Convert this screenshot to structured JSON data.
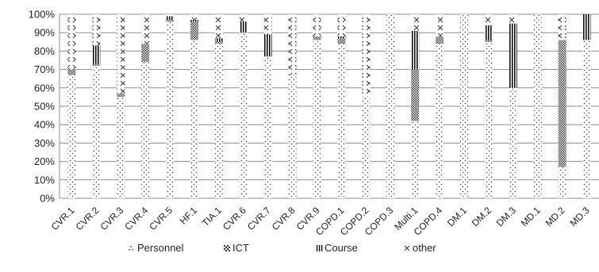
{
  "chart_data": {
    "type": "bar",
    "stacked": true,
    "percent": true,
    "categories": [
      "CVR.1",
      "CVR.2",
      "CVR.3",
      "CVR.4",
      "CVR.5",
      "HF.1",
      "TIA.1",
      "CVR.6",
      "CVR.7",
      "CVR.8",
      "CVR.9",
      "COPD.1",
      "COPD.2",
      "COPD.3",
      "Multi.1",
      "COPD.4",
      "DM.1",
      "DM.2",
      "DM.3",
      "MD.1",
      "MD.2",
      "MD.3"
    ],
    "series": [
      {
        "name": "Personnel",
        "pattern": "dots",
        "values": [
          67,
          72,
          55,
          74,
          96,
          86,
          84,
          90,
          77,
          67,
          86,
          84,
          55,
          100,
          42,
          84,
          100,
          85,
          60,
          100,
          17,
          86
        ]
      },
      {
        "name": "ICT",
        "pattern": "checker",
        "values": [
          3,
          1,
          2,
          10,
          1,
          10,
          1,
          0,
          0,
          0,
          2,
          3,
          0,
          0,
          28,
          4,
          0,
          1,
          0,
          0,
          69,
          0
        ]
      },
      {
        "name": "Course",
        "pattern": "vlines",
        "values": [
          0,
          10,
          0,
          0,
          2,
          1,
          2,
          6,
          12,
          0,
          0,
          1,
          0,
          0,
          21,
          0,
          0,
          8,
          35,
          0,
          0,
          14
        ]
      },
      {
        "name": "other",
        "pattern": "crosses",
        "values": [
          30,
          17,
          43,
          16,
          1,
          3,
          13,
          4,
          11,
          33,
          12,
          12,
          45,
          0,
          9,
          12,
          0,
          6,
          5,
          0,
          14,
          0
        ]
      }
    ],
    "yticks": [
      "0%",
      "10%",
      "20%",
      "30%",
      "40%",
      "50%",
      "60%",
      "70%",
      "80%",
      "90%",
      "100%"
    ],
    "ylim": [
      0,
      100
    ],
    "grid": true,
    "legend": "bottom"
  }
}
